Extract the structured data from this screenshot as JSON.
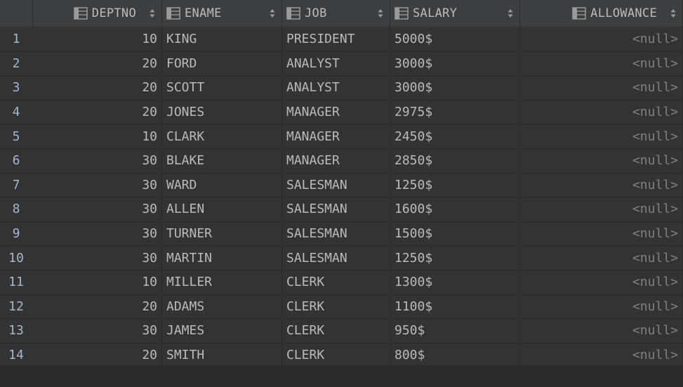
{
  "columns": [
    {
      "name": "DEPTNO"
    },
    {
      "name": "ENAME"
    },
    {
      "name": "JOB"
    },
    {
      "name": "SALARY"
    },
    {
      "name": "ALLOWANCE"
    }
  ],
  "rows": [
    {
      "num": "1",
      "deptno": "10",
      "ename": "KING",
      "job": "PRESIDENT",
      "salary": "5000$",
      "allowance": "<null>"
    },
    {
      "num": "2",
      "deptno": "20",
      "ename": "FORD",
      "job": "ANALYST",
      "salary": "3000$",
      "allowance": "<null>"
    },
    {
      "num": "3",
      "deptno": "20",
      "ename": "SCOTT",
      "job": "ANALYST",
      "salary": "3000$",
      "allowance": "<null>"
    },
    {
      "num": "4",
      "deptno": "20",
      "ename": "JONES",
      "job": "MANAGER",
      "salary": "2975$",
      "allowance": "<null>"
    },
    {
      "num": "5",
      "deptno": "10",
      "ename": "CLARK",
      "job": "MANAGER",
      "salary": "2450$",
      "allowance": "<null>"
    },
    {
      "num": "6",
      "deptno": "30",
      "ename": "BLAKE",
      "job": "MANAGER",
      "salary": "2850$",
      "allowance": "<null>"
    },
    {
      "num": "7",
      "deptno": "30",
      "ename": "WARD",
      "job": "SALESMAN",
      "salary": "1250$",
      "allowance": "<null>"
    },
    {
      "num": "8",
      "deptno": "30",
      "ename": "ALLEN",
      "job": "SALESMAN",
      "salary": "1600$",
      "allowance": "<null>"
    },
    {
      "num": "9",
      "deptno": "30",
      "ename": "TURNER",
      "job": "SALESMAN",
      "salary": "1500$",
      "allowance": "<null>"
    },
    {
      "num": "10",
      "deptno": "30",
      "ename": "MARTIN",
      "job": "SALESMAN",
      "salary": "1250$",
      "allowance": "<null>"
    },
    {
      "num": "11",
      "deptno": "10",
      "ename": "MILLER",
      "job": "CLERK",
      "salary": "1300$",
      "allowance": "<null>"
    },
    {
      "num": "12",
      "deptno": "20",
      "ename": "ADAMS",
      "job": "CLERK",
      "salary": "1100$",
      "allowance": "<null>"
    },
    {
      "num": "13",
      "deptno": "30",
      "ename": "JAMES",
      "job": "CLERK",
      "salary": "950$",
      "allowance": "<null>"
    },
    {
      "num": "14",
      "deptno": "20",
      "ename": "SMITH",
      "job": "CLERK",
      "salary": "800$",
      "allowance": "<null>"
    }
  ],
  "icons": {
    "column_icon": "table-column-icon",
    "sort_icon": "sort-arrows-icon"
  },
  "colors": {
    "background": "#2b2b2b",
    "header_background": "#3c3f41",
    "cell_background": "#313335",
    "text": "#bbbbbb",
    "null_text": "#808080"
  }
}
